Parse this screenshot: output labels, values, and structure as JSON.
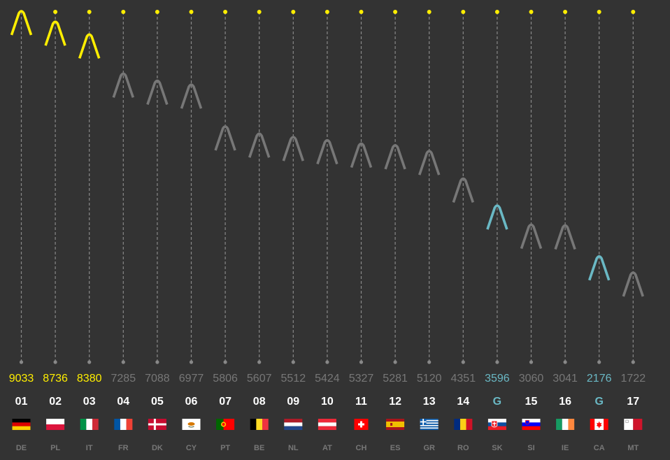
{
  "chart_data": {
    "type": "scatter",
    "ylim": [
      1000,
      9500
    ],
    "grid": "vertical dashed drop lines per column",
    "colors": {
      "background": "#333333",
      "top3": "#ffee00",
      "normal": "#777777",
      "guest": "#6ab8c4",
      "rank": "#ffffff",
      "line": "#888888",
      "code": "#777777"
    },
    "marker_icon": "caret-marker-icon",
    "items": [
      {
        "code": "DE",
        "rank": "01",
        "value": 9033,
        "value_label": "9033",
        "category": "top3"
      },
      {
        "code": "PL",
        "rank": "02",
        "value": 8736,
        "value_label": "8736",
        "category": "top3"
      },
      {
        "code": "IT",
        "rank": "03",
        "value": 8380,
        "value_label": "8380",
        "category": "top3"
      },
      {
        "code": "FR",
        "rank": "04",
        "value": 7285,
        "value_label": "7285",
        "category": "normal"
      },
      {
        "code": "DK",
        "rank": "05",
        "value": 7088,
        "value_label": "7088",
        "category": "normal"
      },
      {
        "code": "CY",
        "rank": "06",
        "value": 6977,
        "value_label": "6977",
        "category": "normal"
      },
      {
        "code": "PT",
        "rank": "07",
        "value": 5806,
        "value_label": "5806",
        "category": "normal"
      },
      {
        "code": "BE",
        "rank": "08",
        "value": 5607,
        "value_label": "5607",
        "category": "normal"
      },
      {
        "code": "NL",
        "rank": "09",
        "value": 5512,
        "value_label": "5512",
        "category": "normal"
      },
      {
        "code": "AT",
        "rank": "10",
        "value": 5424,
        "value_label": "5424",
        "category": "normal"
      },
      {
        "code": "CH",
        "rank": "11",
        "value": 5327,
        "value_label": "5327",
        "category": "normal"
      },
      {
        "code": "ES",
        "rank": "12",
        "value": 5281,
        "value_label": "5281",
        "category": "normal"
      },
      {
        "code": "GR",
        "rank": "13",
        "value": 5120,
        "value_label": "5120",
        "category": "normal"
      },
      {
        "code": "RO",
        "rank": "14",
        "value": 4351,
        "value_label": "4351",
        "category": "normal"
      },
      {
        "code": "SK",
        "rank": "G",
        "value": 3596,
        "value_label": "3596",
        "category": "guest"
      },
      {
        "code": "SI",
        "rank": "15",
        "value": 3060,
        "value_label": "3060",
        "category": "normal"
      },
      {
        "code": "IE",
        "rank": "16",
        "value": 3041,
        "value_label": "3041",
        "category": "normal"
      },
      {
        "code": "CA",
        "rank": "G",
        "value": 2176,
        "value_label": "2176",
        "category": "guest"
      },
      {
        "code": "MT",
        "rank": "17",
        "value": 1722,
        "value_label": "1722",
        "category": "normal"
      }
    ]
  }
}
